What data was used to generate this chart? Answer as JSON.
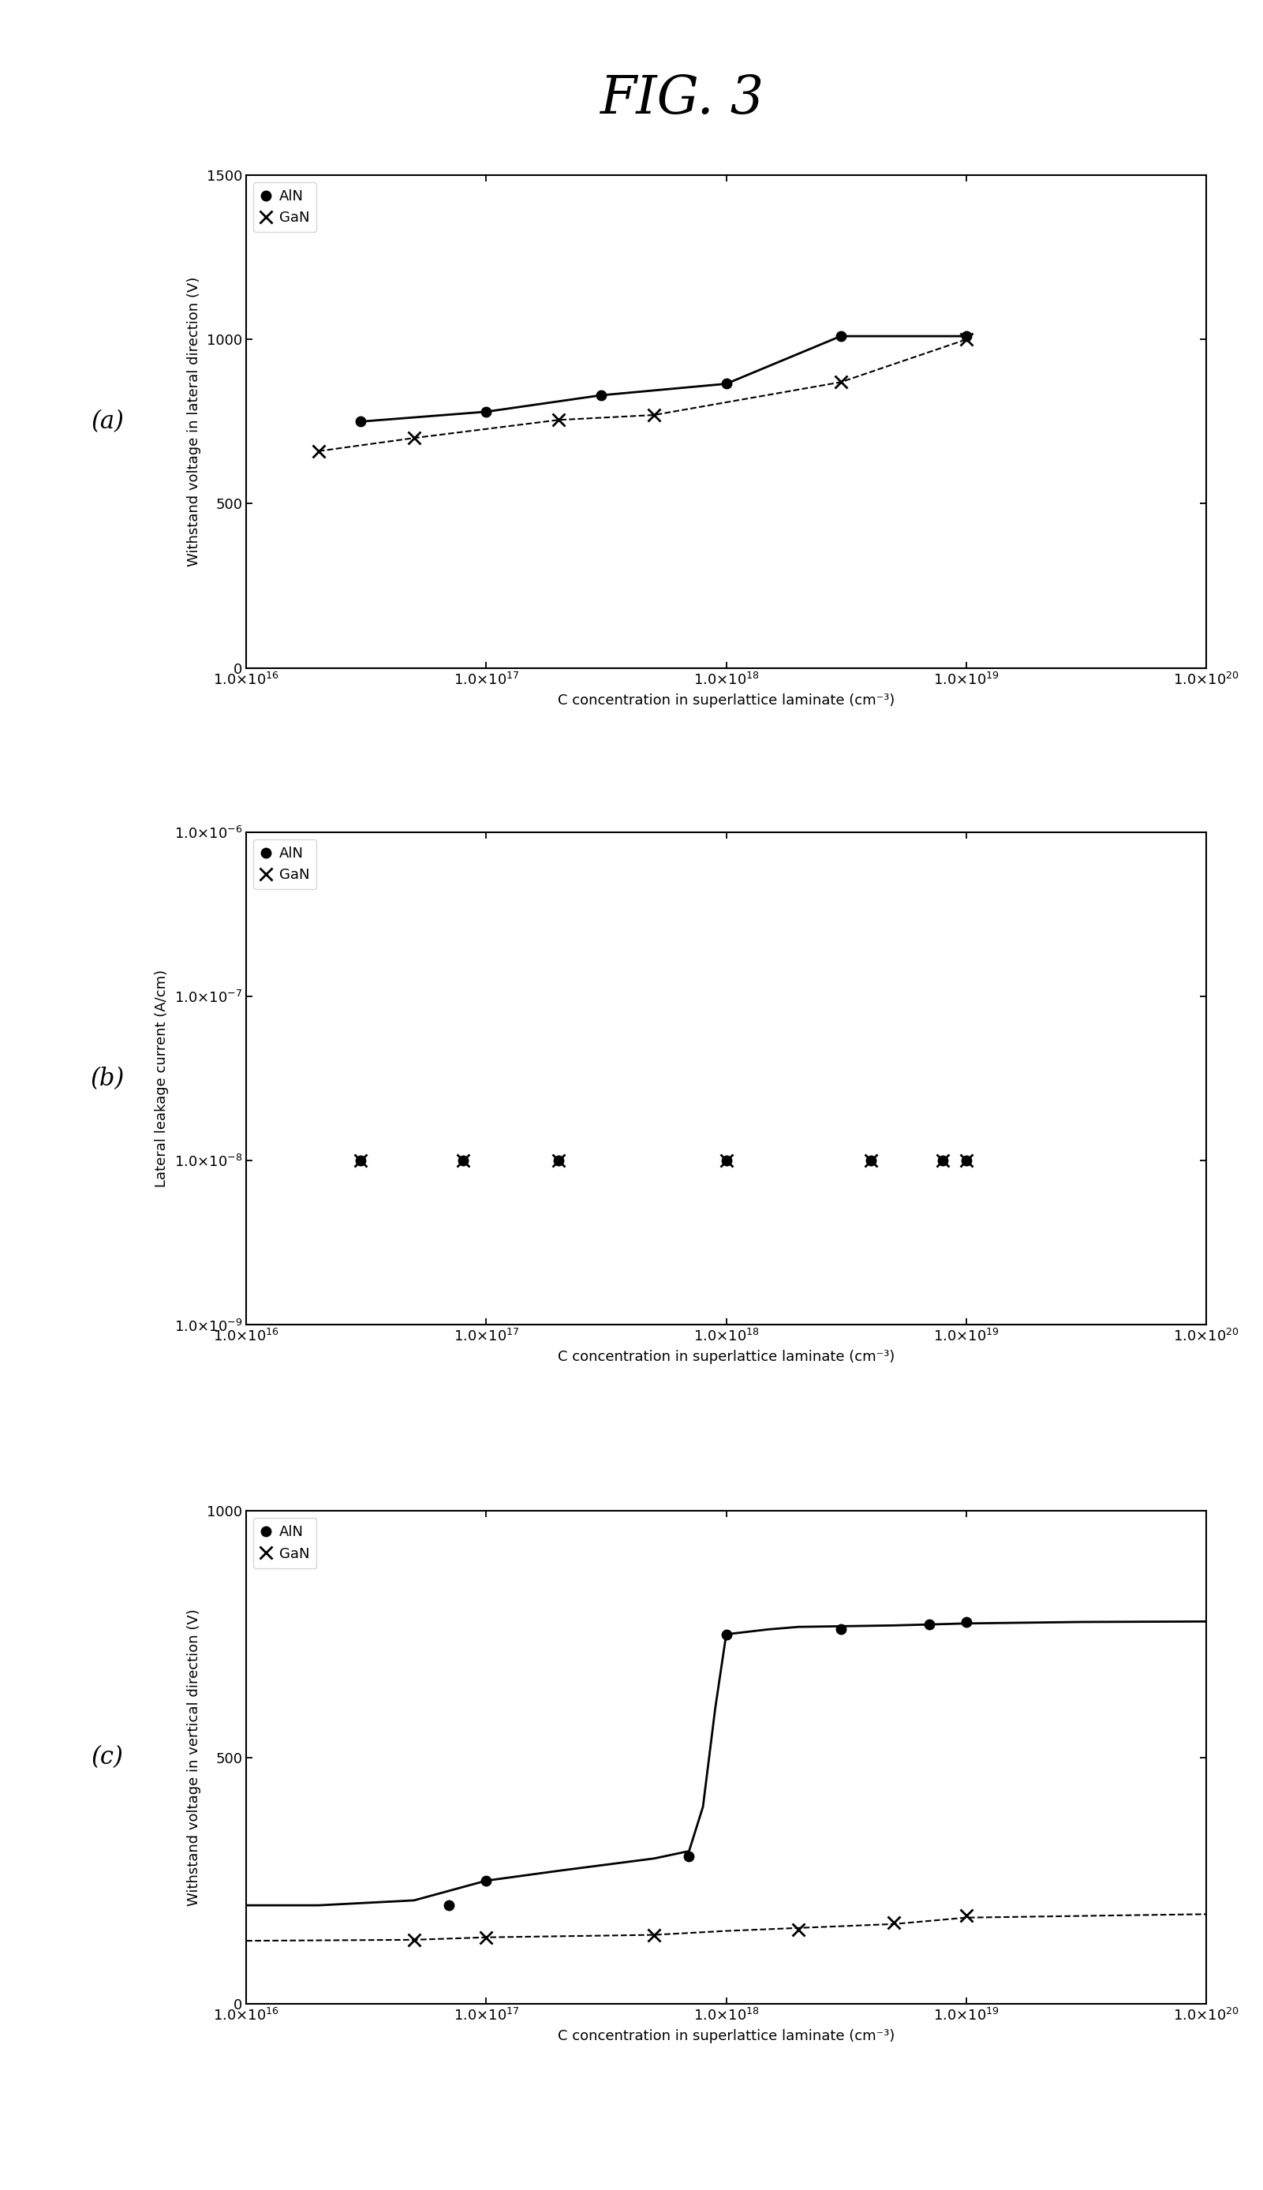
{
  "title": "FIG. 3",
  "xlabel": "C concentration in superlattice laminate (cm⁻³)",
  "panel_a": {
    "ylabel": "Withstand voltage in lateral direction (V)",
    "ylim": [
      0,
      1500
    ],
    "yticks": [
      0,
      500,
      1000,
      1500
    ],
    "AlN_x": [
      3e+16,
      1e+17,
      3e+17,
      1e+18,
      3e+18,
      1e+19
    ],
    "AlN_y": [
      750,
      780,
      830,
      865,
      1010,
      1010
    ],
    "GaN_x": [
      2e+16,
      5e+16,
      2e+17,
      5e+17,
      3e+18,
      1e+19
    ],
    "GaN_y": [
      660,
      700,
      755,
      770,
      870,
      1000
    ]
  },
  "panel_b": {
    "ylabel": "Lateral leakage current (A/cm)",
    "AlN_x": [
      3e+16,
      8e+16,
      2e+17,
      1e+18,
      4e+18,
      8e+18,
      1e+19
    ],
    "AlN_y": [
      1e-08,
      1e-08,
      1e-08,
      1e-08,
      1e-08,
      1e-08,
      1e-08
    ],
    "GaN_x": [
      3e+16,
      8e+16,
      2e+17,
      1e+18,
      4e+18,
      8e+18,
      1e+19
    ],
    "GaN_y": [
      1e-08,
      1e-08,
      1e-08,
      1e-08,
      1e-08,
      1e-08,
      1e-08
    ]
  },
  "panel_c": {
    "ylabel": "Withstand voltage in vertical direction (V)",
    "ylim": [
      0,
      1000
    ],
    "yticks": [
      0,
      500,
      1000
    ],
    "AlN_x_data": [
      7e+16,
      1e+17,
      7e+17,
      1e+18,
      3e+18,
      7e+18,
      1e+19
    ],
    "AlN_y_data": [
      200,
      250,
      300,
      750,
      760,
      770,
      775
    ],
    "GaN_x_data": [
      5e+16,
      1e+17,
      5e+17,
      2e+18,
      5e+18,
      1e+19
    ],
    "GaN_y_data": [
      130,
      135,
      140,
      150,
      165,
      180
    ],
    "AlN_curve_x": [
      1e+16,
      2e+16,
      5e+16,
      1e+17,
      2e+17,
      5e+17,
      7e+17,
      8e+17,
      9e+17,
      1e+18,
      1.5e+18,
      2e+18,
      5e+18,
      1e+19,
      3e+19,
      1e+20
    ],
    "AlN_curve_y": [
      200,
      200,
      210,
      250,
      270,
      295,
      310,
      400,
      600,
      750,
      760,
      765,
      768,
      772,
      775,
      776
    ],
    "GaN_curve_x": [
      1e+16,
      5e+16,
      1e+17,
      5e+17,
      1e+18,
      5e+18,
      1e+19,
      5e+19,
      1e+20
    ],
    "GaN_curve_y": [
      128,
      130,
      135,
      140,
      148,
      162,
      175,
      180,
      182
    ]
  },
  "xlim": [
    1e+16,
    1e+20
  ],
  "xtick_locs": [
    1e+16,
    1e+17,
    1e+18,
    1e+19,
    1e+20
  ],
  "background_color": "#ffffff"
}
